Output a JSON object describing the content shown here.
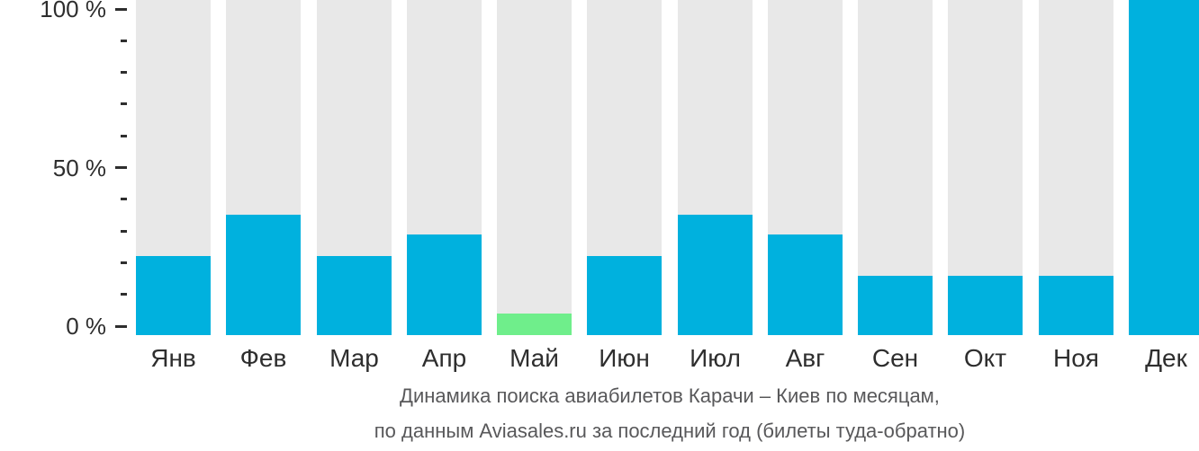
{
  "chart_data": {
    "type": "bar",
    "title": "Динамика поиска авиабилетов Карачи – Киев по месяцам,",
    "subtitle": "по данным Aviasales.ru за последний год (билеты туда-обратно)",
    "categories": [
      "Янв",
      "Фев",
      "Мар",
      "Апр",
      "Май",
      "Июн",
      "Июл",
      "Авг",
      "Сен",
      "Окт",
      "Ноя",
      "Дек"
    ],
    "values": [
      22,
      35,
      22,
      29,
      4,
      22,
      35,
      29,
      16,
      16,
      16,
      100
    ],
    "highlight_index": 4,
    "xlabel": "",
    "ylabel": "",
    "ylim": [
      0,
      100
    ],
    "ytick_major_labels": [
      "100 %",
      "50 %",
      "0 %"
    ],
    "ytick_minor_step_percent": 10,
    "legend": "none",
    "grid": false,
    "colors": {
      "bar": "#00b1de",
      "highlight": "#6fee8b",
      "track": "#e8e8e8",
      "axis_text": "#2e2e2e",
      "caption_text": "#58585a"
    }
  }
}
